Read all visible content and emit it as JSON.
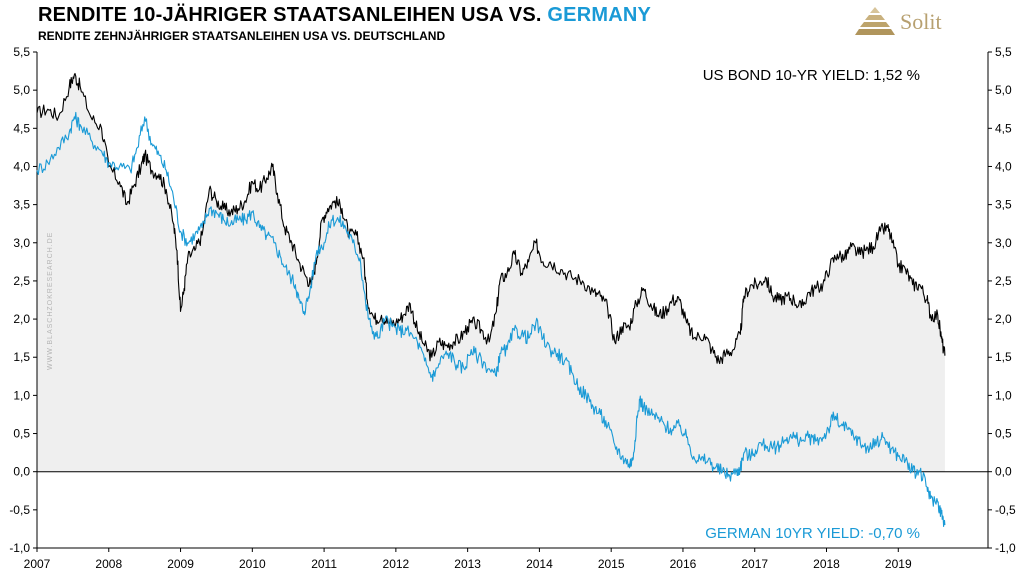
{
  "header": {
    "title_main": "RENDITE 10-JÄHRIGER STAATSANLEIHEN USA  VS. ",
    "title_highlight": "GERMANY",
    "subtitle": "RENDITE ZEHNJÄHRIGER STAATSANLEIHEN USA VS. DEUTSCHLAND",
    "logo_text": "Solit"
  },
  "watermark": "WWW.BLASCHZOKRESEARCH.DE",
  "colors": {
    "us": "#000000",
    "germany": "#1a9ad6",
    "fill": "#efefef",
    "logo": "#b7a070"
  },
  "chart_data": {
    "type": "line",
    "title": "RENDITE 10-JÄHRIGER STAATSANLEIHEN USA  VS. GERMANY",
    "xlim": [
      2007,
      2020.25
    ],
    "ylim": [
      -1.0,
      5.5
    ],
    "x_ticks": [
      2007,
      2008,
      2009,
      2010,
      2011,
      2012,
      2013,
      2014,
      2015,
      2016,
      2017,
      2018,
      2019
    ],
    "y_ticks": [
      "5,5",
      "5,0",
      "4,5",
      "4,0",
      "3,5",
      "3,0",
      "2,5",
      "2,0",
      "1,5",
      "1,0",
      "0,5",
      "0,0",
      "-0,5",
      "-1,0"
    ],
    "y_tick_values": [
      5.5,
      5.0,
      4.5,
      4.0,
      3.5,
      3.0,
      2.5,
      2.0,
      1.5,
      1.0,
      0.5,
      0.0,
      -0.5,
      -1.0
    ],
    "series": [
      {
        "name": "US BOND 10-YR YIELD: 1,52 %",
        "filled": true,
        "points": [
          [
            2007.0,
            4.7
          ],
          [
            2007.15,
            4.75
          ],
          [
            2007.3,
            4.65
          ],
          [
            2007.45,
            5.05
          ],
          [
            2007.52,
            5.2
          ],
          [
            2007.6,
            5.05
          ],
          [
            2007.75,
            4.65
          ],
          [
            2007.9,
            4.5
          ],
          [
            2008.0,
            4.0
          ],
          [
            2008.15,
            3.8
          ],
          [
            2008.25,
            3.5
          ],
          [
            2008.35,
            3.75
          ],
          [
            2008.45,
            4.0
          ],
          [
            2008.5,
            4.15
          ],
          [
            2008.6,
            3.95
          ],
          [
            2008.7,
            3.9
          ],
          [
            2008.8,
            3.7
          ],
          [
            2008.9,
            3.25
          ],
          [
            2008.95,
            2.9
          ],
          [
            2009.0,
            2.1
          ],
          [
            2009.05,
            2.4
          ],
          [
            2009.1,
            2.8
          ],
          [
            2009.2,
            2.9
          ],
          [
            2009.3,
            3.1
          ],
          [
            2009.4,
            3.7
          ],
          [
            2009.5,
            3.55
          ],
          [
            2009.6,
            3.45
          ],
          [
            2009.7,
            3.4
          ],
          [
            2009.8,
            3.45
          ],
          [
            2009.9,
            3.55
          ],
          [
            2010.0,
            3.8
          ],
          [
            2010.1,
            3.7
          ],
          [
            2010.2,
            3.85
          ],
          [
            2010.28,
            4.0
          ],
          [
            2010.35,
            3.65
          ],
          [
            2010.45,
            3.2
          ],
          [
            2010.55,
            3.0
          ],
          [
            2010.65,
            2.75
          ],
          [
            2010.75,
            2.55
          ],
          [
            2010.82,
            2.45
          ],
          [
            2010.9,
            2.8
          ],
          [
            2010.97,
            3.3
          ],
          [
            2011.05,
            3.45
          ],
          [
            2011.15,
            3.55
          ],
          [
            2011.25,
            3.45
          ],
          [
            2011.35,
            3.1
          ],
          [
            2011.45,
            3.1
          ],
          [
            2011.55,
            2.8
          ],
          [
            2011.6,
            2.25
          ],
          [
            2011.7,
            2.0
          ],
          [
            2011.8,
            2.05
          ],
          [
            2011.9,
            1.95
          ],
          [
            2012.0,
            1.95
          ],
          [
            2012.1,
            2.05
          ],
          [
            2012.2,
            2.2
          ],
          [
            2012.3,
            1.85
          ],
          [
            2012.4,
            1.65
          ],
          [
            2012.5,
            1.5
          ],
          [
            2012.6,
            1.7
          ],
          [
            2012.7,
            1.65
          ],
          [
            2012.8,
            1.7
          ],
          [
            2012.9,
            1.75
          ],
          [
            2013.0,
            1.9
          ],
          [
            2013.1,
            1.95
          ],
          [
            2013.2,
            1.85
          ],
          [
            2013.3,
            1.7
          ],
          [
            2013.4,
            2.1
          ],
          [
            2013.45,
            2.5
          ],
          [
            2013.55,
            2.6
          ],
          [
            2013.65,
            2.85
          ],
          [
            2013.75,
            2.6
          ],
          [
            2013.85,
            2.75
          ],
          [
            2013.95,
            3.0
          ],
          [
            2014.05,
            2.75
          ],
          [
            2014.15,
            2.75
          ],
          [
            2014.3,
            2.65
          ],
          [
            2014.45,
            2.55
          ],
          [
            2014.6,
            2.5
          ],
          [
            2014.75,
            2.35
          ],
          [
            2014.85,
            2.3
          ],
          [
            2014.95,
            2.15
          ],
          [
            2015.05,
            1.7
          ],
          [
            2015.15,
            1.9
          ],
          [
            2015.25,
            1.9
          ],
          [
            2015.35,
            2.2
          ],
          [
            2015.45,
            2.4
          ],
          [
            2015.55,
            2.2
          ],
          [
            2015.65,
            2.05
          ],
          [
            2015.75,
            2.1
          ],
          [
            2015.85,
            2.25
          ],
          [
            2015.95,
            2.25
          ],
          [
            2016.05,
            1.95
          ],
          [
            2016.15,
            1.75
          ],
          [
            2016.3,
            1.8
          ],
          [
            2016.4,
            1.6
          ],
          [
            2016.5,
            1.45
          ],
          [
            2016.6,
            1.55
          ],
          [
            2016.7,
            1.6
          ],
          [
            2016.8,
            1.8
          ],
          [
            2016.85,
            2.3
          ],
          [
            2016.95,
            2.45
          ],
          [
            2017.05,
            2.45
          ],
          [
            2017.15,
            2.55
          ],
          [
            2017.25,
            2.3
          ],
          [
            2017.35,
            2.25
          ],
          [
            2017.45,
            2.3
          ],
          [
            2017.55,
            2.25
          ],
          [
            2017.65,
            2.15
          ],
          [
            2017.75,
            2.35
          ],
          [
            2017.85,
            2.4
          ],
          [
            2017.95,
            2.45
          ],
          [
            2018.05,
            2.7
          ],
          [
            2018.15,
            2.85
          ],
          [
            2018.25,
            2.8
          ],
          [
            2018.35,
            2.95
          ],
          [
            2018.45,
            2.85
          ],
          [
            2018.55,
            2.9
          ],
          [
            2018.65,
            2.95
          ],
          [
            2018.75,
            3.15
          ],
          [
            2018.85,
            3.2
          ],
          [
            2018.92,
            3.0
          ],
          [
            2019.0,
            2.7
          ],
          [
            2019.1,
            2.65
          ],
          [
            2019.2,
            2.45
          ],
          [
            2019.3,
            2.45
          ],
          [
            2019.4,
            2.25
          ],
          [
            2019.45,
            2.05
          ],
          [
            2019.55,
            2.05
          ],
          [
            2019.6,
            1.75
          ],
          [
            2019.65,
            1.52
          ]
        ]
      },
      {
        "name": "GERMAN 10YR  YIELD: -0,70 %",
        "filled": false,
        "points": [
          [
            2007.0,
            3.95
          ],
          [
            2007.15,
            4.05
          ],
          [
            2007.3,
            4.25
          ],
          [
            2007.45,
            4.45
          ],
          [
            2007.52,
            4.65
          ],
          [
            2007.6,
            4.55
          ],
          [
            2007.75,
            4.35
          ],
          [
            2007.9,
            4.2
          ],
          [
            2008.0,
            4.05
          ],
          [
            2008.15,
            4.0
          ],
          [
            2008.3,
            3.95
          ],
          [
            2008.4,
            4.25
          ],
          [
            2008.5,
            4.65
          ],
          [
            2008.6,
            4.3
          ],
          [
            2008.7,
            4.15
          ],
          [
            2008.8,
            3.95
          ],
          [
            2008.9,
            3.6
          ],
          [
            2009.0,
            3.15
          ],
          [
            2009.1,
            3.0
          ],
          [
            2009.2,
            3.1
          ],
          [
            2009.3,
            3.2
          ],
          [
            2009.4,
            3.45
          ],
          [
            2009.5,
            3.4
          ],
          [
            2009.6,
            3.3
          ],
          [
            2009.7,
            3.25
          ],
          [
            2009.8,
            3.3
          ],
          [
            2009.9,
            3.3
          ],
          [
            2010.0,
            3.4
          ],
          [
            2010.1,
            3.2
          ],
          [
            2010.2,
            3.1
          ],
          [
            2010.3,
            3.0
          ],
          [
            2010.4,
            2.8
          ],
          [
            2010.5,
            2.6
          ],
          [
            2010.6,
            2.45
          ],
          [
            2010.65,
            2.25
          ],
          [
            2010.72,
            2.1
          ],
          [
            2010.8,
            2.35
          ],
          [
            2010.9,
            2.9
          ],
          [
            2011.0,
            3.0
          ],
          [
            2011.1,
            3.3
          ],
          [
            2011.2,
            3.3
          ],
          [
            2011.3,
            3.2
          ],
          [
            2011.4,
            3.0
          ],
          [
            2011.5,
            2.8
          ],
          [
            2011.58,
            2.2
          ],
          [
            2011.65,
            1.9
          ],
          [
            2011.75,
            1.75
          ],
          [
            2011.85,
            2.0
          ],
          [
            2011.95,
            1.9
          ],
          [
            2012.05,
            1.85
          ],
          [
            2012.15,
            1.85
          ],
          [
            2012.3,
            1.7
          ],
          [
            2012.4,
            1.45
          ],
          [
            2012.5,
            1.25
          ],
          [
            2012.55,
            1.3
          ],
          [
            2012.65,
            1.5
          ],
          [
            2012.75,
            1.55
          ],
          [
            2012.85,
            1.4
          ],
          [
            2012.95,
            1.35
          ],
          [
            2013.05,
            1.6
          ],
          [
            2013.15,
            1.5
          ],
          [
            2013.3,
            1.35
          ],
          [
            2013.4,
            1.25
          ],
          [
            2013.45,
            1.55
          ],
          [
            2013.55,
            1.6
          ],
          [
            2013.65,
            1.85
          ],
          [
            2013.75,
            1.8
          ],
          [
            2013.85,
            1.75
          ],
          [
            2013.95,
            1.95
          ],
          [
            2014.05,
            1.75
          ],
          [
            2014.15,
            1.6
          ],
          [
            2014.25,
            1.55
          ],
          [
            2014.35,
            1.45
          ],
          [
            2014.45,
            1.3
          ],
          [
            2014.55,
            1.1
          ],
          [
            2014.65,
            1.0
          ],
          [
            2014.75,
            0.85
          ],
          [
            2014.85,
            0.75
          ],
          [
            2014.95,
            0.6
          ],
          [
            2015.05,
            0.35
          ],
          [
            2015.15,
            0.2
          ],
          [
            2015.25,
            0.1
          ],
          [
            2015.3,
            0.15
          ],
          [
            2015.35,
            0.6
          ],
          [
            2015.4,
            0.95
          ],
          [
            2015.45,
            0.85
          ],
          [
            2015.55,
            0.75
          ],
          [
            2015.65,
            0.7
          ],
          [
            2015.75,
            0.6
          ],
          [
            2015.85,
            0.55
          ],
          [
            2015.95,
            0.6
          ],
          [
            2016.05,
            0.45
          ],
          [
            2016.15,
            0.2
          ],
          [
            2016.25,
            0.15
          ],
          [
            2016.35,
            0.15
          ],
          [
            2016.45,
            0.05
          ],
          [
            2016.55,
            0.0
          ],
          [
            2016.65,
            -0.05
          ],
          [
            2016.75,
            0.0
          ],
          [
            2016.8,
            0.05
          ],
          [
            2016.85,
            0.25
          ],
          [
            2016.95,
            0.2
          ],
          [
            2017.05,
            0.35
          ],
          [
            2017.15,
            0.35
          ],
          [
            2017.25,
            0.3
          ],
          [
            2017.35,
            0.35
          ],
          [
            2017.45,
            0.45
          ],
          [
            2017.55,
            0.45
          ],
          [
            2017.65,
            0.4
          ],
          [
            2017.75,
            0.45
          ],
          [
            2017.85,
            0.4
          ],
          [
            2017.95,
            0.45
          ],
          [
            2018.05,
            0.6
          ],
          [
            2018.1,
            0.75
          ],
          [
            2018.2,
            0.6
          ],
          [
            2018.3,
            0.55
          ],
          [
            2018.4,
            0.45
          ],
          [
            2018.5,
            0.35
          ],
          [
            2018.6,
            0.3
          ],
          [
            2018.7,
            0.4
          ],
          [
            2018.8,
            0.45
          ],
          [
            2018.9,
            0.3
          ],
          [
            2019.0,
            0.2
          ],
          [
            2019.1,
            0.15
          ],
          [
            2019.2,
            0.0
          ],
          [
            2019.3,
            0.0
          ],
          [
            2019.4,
            -0.2
          ],
          [
            2019.45,
            -0.35
          ],
          [
            2019.55,
            -0.4
          ],
          [
            2019.6,
            -0.55
          ],
          [
            2019.65,
            -0.7
          ]
        ]
      }
    ]
  }
}
